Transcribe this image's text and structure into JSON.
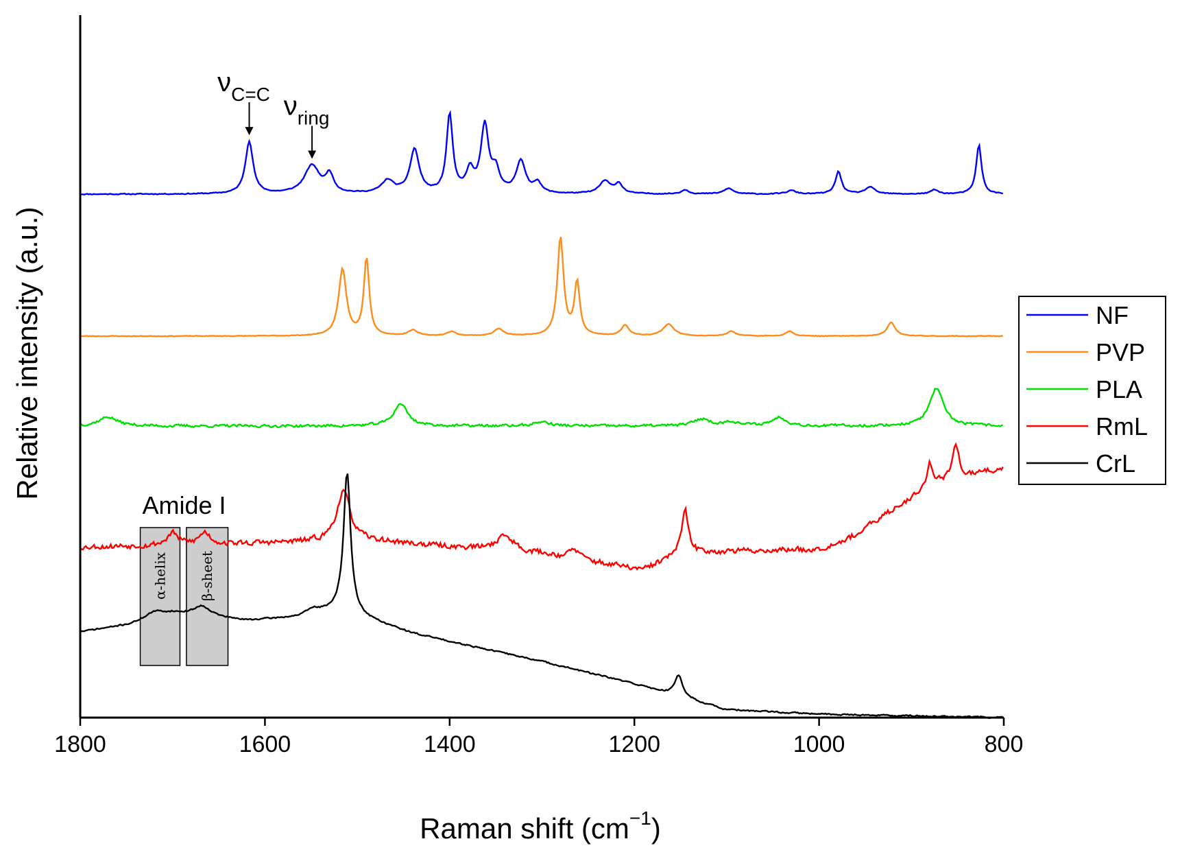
{
  "chart_data": {
    "type": "line",
    "title": "",
    "xlabel": "Raman shift (cm",
    "xlabel_exponent": "−1",
    "xlabel_close": ")",
    "ylabel": "Relative intensity (a.u.)",
    "xlim": [
      1800,
      800
    ],
    "x_reversed": true,
    "ylim": [
      0,
      10
    ],
    "y_ticks_shown": false,
    "x_ticks": [
      1800,
      1600,
      1400,
      1200,
      1000,
      800
    ],
    "x_tick_labels": [
      "1800",
      "1600",
      "1400",
      "1200",
      "1000",
      "800"
    ],
    "grid": false,
    "legend_position": "right",
    "series": [
      {
        "name": "NF",
        "color": "#0000ff",
        "baseline": 7.45,
        "noise": 0.008,
        "seed": 11,
        "peaks": [
          [
            1617,
            0.75,
            5
          ],
          [
            1549,
            0.4,
            10
          ],
          [
            1530,
            0.25,
            5
          ],
          [
            1467,
            0.18,
            8
          ],
          [
            1438,
            0.62,
            6
          ],
          [
            1400,
            1.12,
            4
          ],
          [
            1378,
            0.3,
            5
          ],
          [
            1362,
            0.95,
            5
          ],
          [
            1350,
            0.3,
            5
          ],
          [
            1323,
            0.46,
            6
          ],
          [
            1305,
            0.15,
            5
          ],
          [
            1232,
            0.18,
            7
          ],
          [
            1217,
            0.14,
            5
          ],
          [
            1145,
            0.06,
            5
          ],
          [
            1098,
            0.08,
            6
          ],
          [
            1030,
            0.05,
            6
          ],
          [
            979,
            0.32,
            4
          ],
          [
            945,
            0.1,
            6
          ],
          [
            875,
            0.06,
            5
          ],
          [
            827,
            0.7,
            3.5
          ]
        ]
      },
      {
        "name": "PVP",
        "color": "#ff8c1a",
        "baseline": 5.43,
        "noise": 0.005,
        "seed": 23,
        "peaks": [
          [
            1516,
            0.95,
            5
          ],
          [
            1490,
            1.1,
            3.5
          ],
          [
            1440,
            0.08,
            6
          ],
          [
            1398,
            0.06,
            6
          ],
          [
            1347,
            0.1,
            6
          ],
          [
            1280,
            1.4,
            4
          ],
          [
            1262,
            0.75,
            3.5
          ],
          [
            1210,
            0.15,
            5
          ],
          [
            1163,
            0.17,
            7
          ],
          [
            1095,
            0.07,
            5
          ],
          [
            1032,
            0.07,
            5
          ],
          [
            922,
            0.2,
            5
          ]
        ]
      },
      {
        "name": "PLA",
        "color": "#00e000",
        "baseline": 4.15,
        "noise": 0.022,
        "seed": 37,
        "peaks": [
          [
            1770,
            0.13,
            12
          ],
          [
            1453,
            0.32,
            9
          ],
          [
            1300,
            0.06,
            10
          ],
          [
            1127,
            0.1,
            10
          ],
          [
            1095,
            0.06,
            10
          ],
          [
            1043,
            0.12,
            10
          ],
          [
            873,
            0.53,
            9
          ]
        ]
      },
      {
        "name": "RmL",
        "color": "#ff0000",
        "baseline": 2.43,
        "noise": 0.045,
        "seed": 53,
        "trend": [
          [
            1800,
            2.43
          ],
          [
            1535,
            2.5
          ],
          [
            1470,
            2.5
          ],
          [
            1300,
            2.33
          ],
          [
            1190,
            2.1
          ],
          [
            1150,
            2.35
          ],
          [
            1000,
            2.4
          ],
          [
            960,
            2.6
          ],
          [
            910,
            3.05
          ],
          [
            870,
            3.35
          ],
          [
            800,
            3.55
          ]
        ],
        "peaks": [
          [
            1700,
            0.17,
            7
          ],
          [
            1665,
            0.17,
            7
          ],
          [
            1515,
            0.72,
            9
          ],
          [
            1340,
            0.22,
            12
          ],
          [
            1265,
            0.13,
            7
          ],
          [
            1145,
            0.6,
            4
          ],
          [
            880,
            0.35,
            4
          ],
          [
            852,
            0.5,
            4
          ]
        ]
      },
      {
        "name": "CrL",
        "color": "#000000",
        "baseline": 1.0,
        "noise": 0.012,
        "seed": 71,
        "trend": [
          [
            1800,
            1.22
          ],
          [
            1745,
            1.32
          ],
          [
            1700,
            1.47
          ],
          [
            1620,
            1.38
          ],
          [
            1560,
            1.43
          ],
          [
            1520,
            1.53
          ],
          [
            1440,
            1.2
          ],
          [
            1300,
            0.8
          ],
          [
            1200,
            0.48
          ],
          [
            1150,
            0.3
          ],
          [
            1100,
            0.11
          ],
          [
            1000,
            0.05
          ],
          [
            800,
            0.0
          ]
        ],
        "peaks": [
          [
            1720,
            0.1,
            14
          ],
          [
            1668,
            0.15,
            12
          ],
          [
            1548,
            0.08,
            10
          ],
          [
            1511,
            2.0,
            4.5
          ],
          [
            1152,
            0.3,
            5
          ]
        ]
      }
    ],
    "annotations": [
      {
        "name": "nu-cc-annotation",
        "symbol": "ν",
        "subscript": "C=C",
        "x": 1617
      },
      {
        "name": "nu-ring-annotation",
        "symbol": "ν",
        "subscript": "ring",
        "x": 1549
      }
    ],
    "amide_region": {
      "label": "Amide I",
      "bands": [
        {
          "label": "α-helix",
          "x_from": 1735,
          "x_to": 1692
        },
        {
          "label": "β-sheet",
          "x_from": 1685,
          "x_to": 1640
        }
      ]
    }
  }
}
